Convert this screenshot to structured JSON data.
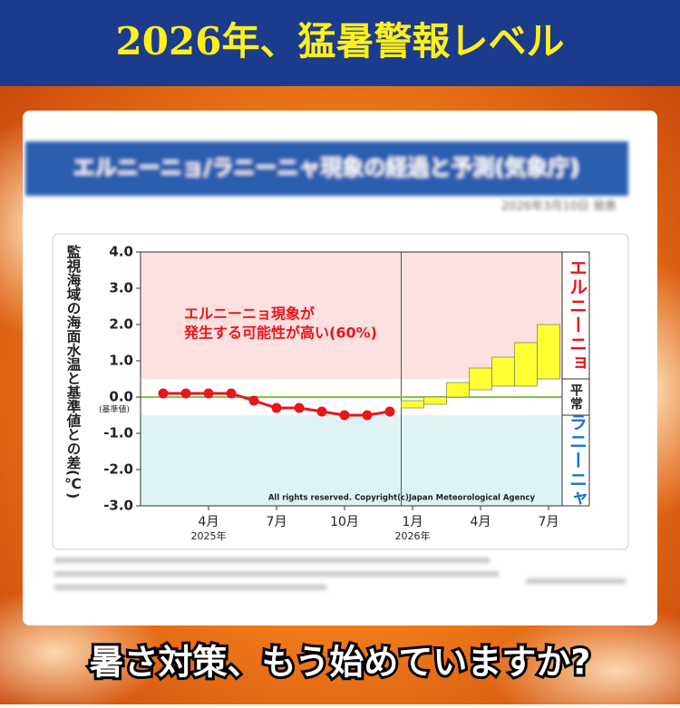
{
  "title": "2026年、猛暑警報レベル",
  "panel_title": "エルニーニョ/ラニーニャ現象の経過と予測(気象庁)",
  "date_note": "2026年3月10日 発表",
  "footer": "暑さ対策、もう始めていますか?",
  "chart_data": {
    "type": "line",
    "y_label": "監視海域の海面水温と基準値との差(℃)",
    "categories": [
      null,
      null,
      "4月",
      null,
      null,
      "7月",
      null,
      null,
      "10月",
      null,
      null,
      "1月",
      null,
      null,
      "4月",
      null,
      null,
      "7月"
    ],
    "years": [
      null,
      null,
      "2025年",
      null,
      null,
      null,
      null,
      null,
      null,
      null,
      null,
      "2026年",
      null,
      null,
      null,
      null,
      null,
      null
    ],
    "observed": {
      "color": "#e8161b",
      "values": [
        0.1,
        0.1,
        0.1,
        0.1,
        -0.1,
        -0.3,
        -0.3,
        -0.4,
        -0.5,
        -0.5,
        -0.4,
        null,
        null,
        null,
        null,
        null,
        null,
        null
      ]
    },
    "forecast": {
      "color": "#ffff33",
      "low": [
        null,
        null,
        null,
        null,
        null,
        null,
        null,
        null,
        null,
        null,
        null,
        -0.3,
        -0.2,
        0.0,
        0.2,
        0.3,
        0.3,
        0.5
      ],
      "high": [
        null,
        null,
        null,
        null,
        null,
        null,
        null,
        null,
        null,
        null,
        null,
        -0.1,
        0.0,
        0.4,
        0.8,
        1.1,
        1.5,
        2.0
      ]
    },
    "zones": [
      {
        "label": "エルニーニョ",
        "from": 0.5,
        "to": 4,
        "color": "#fde0e0",
        "text_color": "#e8161b"
      },
      {
        "label": "平常",
        "from": -0.5,
        "to": 0.5,
        "color": "#ffffff",
        "text_color": "#222222"
      },
      {
        "label": "ラニーニャ",
        "from": -3,
        "to": -0.5,
        "color": "#dff3f5",
        "text_color": "#1a73d9"
      }
    ],
    "baseline": {
      "value": 0,
      "color": "#7ac943",
      "label": "(基準値)"
    },
    "annotation": [
      "エルニーニョ現象が",
      "発生する可能性が高い(60%)"
    ],
    "copyright": "All rights reserved. Copyright(c)Japan Meteorological Agency",
    "ylim": [
      -3,
      4
    ],
    "yticks": [
      {
        "value": -3,
        "label": "-3.0"
      },
      {
        "value": -2,
        "label": "-2.0"
      },
      {
        "value": -1,
        "label": "-1.0"
      },
      {
        "value": 0,
        "label": "0.0"
      },
      {
        "value": 1,
        "label": "1.0"
      },
      {
        "value": 2,
        "label": "2.0"
      },
      {
        "value": 3,
        "label": "3.0"
      },
      {
        "value": 4,
        "label": "4.0"
      }
    ]
  }
}
